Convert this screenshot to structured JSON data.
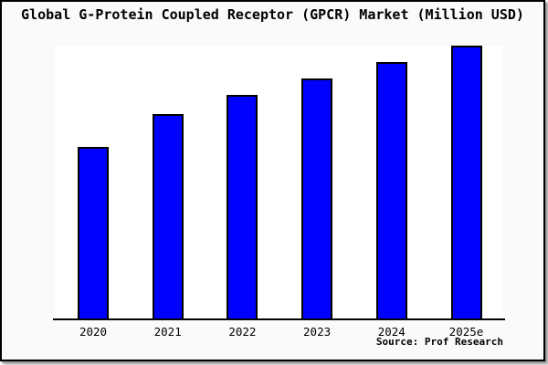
{
  "window": {
    "background": "#fafafa",
    "border_color": "#000000",
    "shadow_color": "#8f8f8f"
  },
  "source_note": "Source: Prof Research",
  "chart_data": {
    "type": "bar",
    "title": "Global G-Protein Coupled Receptor (GPCR) Market (Million USD)",
    "categories": [
      "2020",
      "2021",
      "2022",
      "2023",
      "2024",
      "2025e"
    ],
    "values": [
      63,
      75,
      82,
      88,
      94,
      100
    ],
    "value_unit": "percent of tallest bar (y-axis has no ticks, labels or gridlines in image)",
    "xlabel": "",
    "ylabel": "",
    "ylim": [
      0,
      100
    ],
    "grid": "off",
    "legend": "none",
    "bar_color": "#0000ff",
    "bar_border_color": "#000000",
    "plot_background": "#ffffff",
    "figure_background": "#fafafa",
    "annotation": "Source: Prof Research"
  }
}
